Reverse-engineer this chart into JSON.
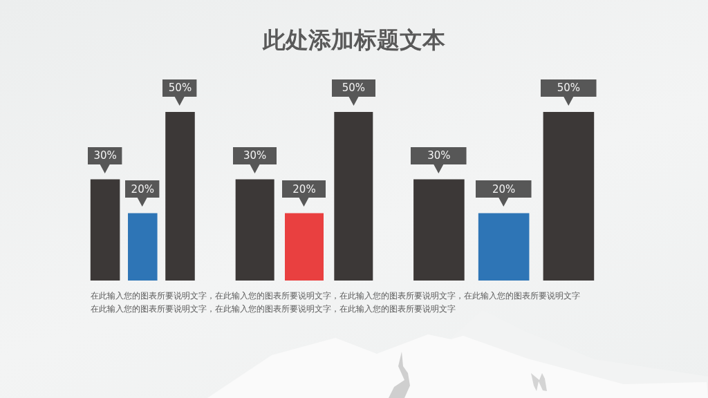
{
  "chart_data": [
    {
      "type": "bar",
      "categories": [
        null,
        null,
        null
      ],
      "values": [
        30,
        20,
        50
      ],
      "colors": [
        "#3c3837",
        "#2e75b6",
        "#3c3837"
      ],
      "value_labels": [
        "30%",
        "20%",
        "50%"
      ],
      "annotations": [
        "在此输入您的图表所要说明文字，在此输入您的图表所要说明文字，在此输入您的图表所要说明文字，在此输入您的图表所要说明文字",
        "在此输入您的图表所要说明文字，在此输入您的图表所要说明文字，在此输入您的图表所要说明文字"
      ]
    },
    {
      "type": "bar",
      "title": "此处添加标题文本",
      "categories": [
        null,
        null,
        null
      ],
      "values": [
        30,
        20,
        50
      ],
      "colors": [
        "#3c3837",
        "#e94040",
        "#3c3837"
      ],
      "value_labels": [
        "30%",
        "20%",
        "50%"
      ]
    },
    {
      "type": "bar",
      "categories": [
        null,
        null,
        null
      ],
      "values": [
        30,
        20,
        50
      ],
      "colors": [
        "#3c3837",
        "#2e75b6",
        "#3c3837"
      ],
      "value_labels": [
        "30%",
        "20%",
        "50%"
      ]
    }
  ]
}
